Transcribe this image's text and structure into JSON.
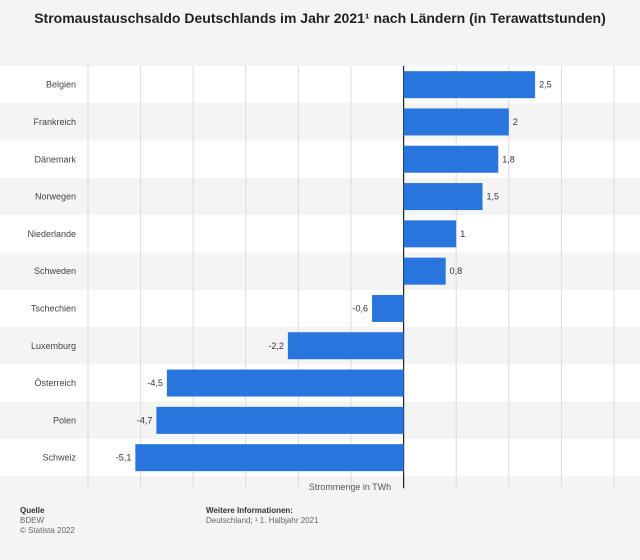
{
  "chart_data": {
    "type": "bar",
    "orientation": "horizontal",
    "title": "Stromaustauschsaldo Deutschlands im Jahr 2021¹ nach Ländern (in Terawattstunden)",
    "xlabel": "Strommenge in TWh",
    "ylabel": "",
    "categories": [
      "Belgien",
      "Frankreich",
      "Dänemark",
      "Norwegen",
      "Niederlande",
      "Schweden",
      "Tschechien",
      "Luxemburg",
      "Österreich",
      "Polen",
      "Schweiz"
    ],
    "values": [
      2.5,
      2,
      1.8,
      1.5,
      1,
      0.8,
      -0.6,
      -2.2,
      -4.5,
      -4.7,
      -5.1
    ],
    "value_labels": [
      "2,5",
      "2",
      "1,8",
      "1,5",
      "1",
      "0,8",
      "-0,6",
      "-2,2",
      "-4,5",
      "-4,7",
      "-5,1"
    ],
    "xlim": [
      -6,
      4
    ],
    "grid": true,
    "bar_color": "#2876dd"
  },
  "footer": {
    "source_heading": "Quelle",
    "source": "BDEW",
    "copyright": "© Statista 2022",
    "info_heading": "Weitere Informationen:",
    "info": "Deutschland; ¹ 1. Halbjahr 2021"
  }
}
